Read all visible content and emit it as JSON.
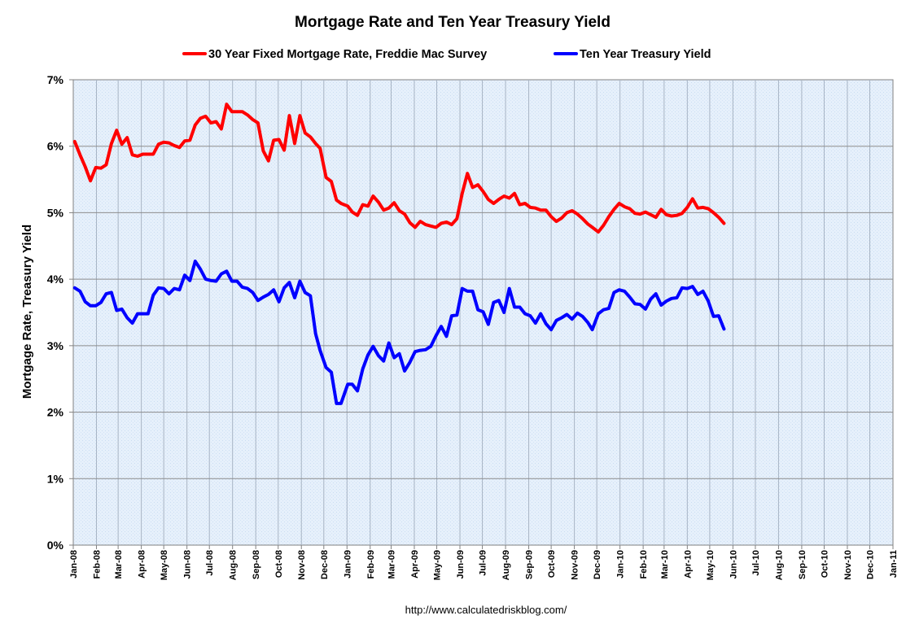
{
  "chart_data": {
    "type": "line",
    "title": "Mortgage Rate and Ten Year Treasury Yield",
    "ylabel": "Mortgage Rate, Treasury Yield",
    "xlabel": "",
    "source": "http://www.calculatedriskblog.com/",
    "ylim": [
      0,
      7
    ],
    "xlim": [
      "2008-01-01",
      "2011-01-01"
    ],
    "y_ticks": [
      "0%",
      "1%",
      "2%",
      "3%",
      "4%",
      "5%",
      "6%",
      "7%"
    ],
    "x_ticks": [
      "Jan-08",
      "Feb-08",
      "Mar-08",
      "Apr-08",
      "May-08",
      "Jun-08",
      "Jul-08",
      "Aug-08",
      "Sep-08",
      "Oct-08",
      "Nov-08",
      "Dec-08",
      "Jan-09",
      "Feb-09",
      "Mar-09",
      "Apr-09",
      "May-09",
      "Jun-09",
      "Jul-09",
      "Aug-09",
      "Sep-09",
      "Oct-09",
      "Nov-09",
      "Dec-09",
      "Jan-10",
      "Feb-10",
      "Mar-10",
      "Apr-10",
      "May-10",
      "Jun-10",
      "Jul-10",
      "Aug-10",
      "Sep-10",
      "Oct-10",
      "Nov-10",
      "Dec-10",
      "Jan-11"
    ],
    "grid": true,
    "legend_position": "top",
    "colors": {
      "mortgage": "#ff0000",
      "treasury": "#0000ff",
      "plot_bg": "#e6f0fb",
      "grid": "#999999"
    },
    "series": [
      {
        "name": "30 Year Fixed Mortgage Rate, Freddie Mac Survey",
        "color": "#ff0000",
        "x": [
          "2008-01-03",
          "2008-01-10",
          "2008-01-17",
          "2008-01-24",
          "2008-01-31",
          "2008-02-07",
          "2008-02-14",
          "2008-02-21",
          "2008-02-28",
          "2008-03-06",
          "2008-03-13",
          "2008-03-20",
          "2008-03-27",
          "2008-04-03",
          "2008-04-10",
          "2008-04-17",
          "2008-04-24",
          "2008-05-01",
          "2008-05-08",
          "2008-05-15",
          "2008-05-22",
          "2008-05-29",
          "2008-06-05",
          "2008-06-12",
          "2008-06-19",
          "2008-06-26",
          "2008-07-03",
          "2008-07-10",
          "2008-07-17",
          "2008-07-24",
          "2008-07-31",
          "2008-08-07",
          "2008-08-14",
          "2008-08-21",
          "2008-08-28",
          "2008-09-04",
          "2008-09-11",
          "2008-09-18",
          "2008-09-25",
          "2008-10-02",
          "2008-10-09",
          "2008-10-16",
          "2008-10-23",
          "2008-10-30",
          "2008-11-06",
          "2008-11-13",
          "2008-11-20",
          "2008-11-26",
          "2008-12-04",
          "2008-12-11",
          "2008-12-18",
          "2008-12-24",
          "2009-01-02",
          "2009-01-08",
          "2009-01-15",
          "2009-01-22",
          "2009-01-29",
          "2009-02-05",
          "2009-02-12",
          "2009-02-19",
          "2009-02-26",
          "2009-03-05",
          "2009-03-12",
          "2009-03-19",
          "2009-03-26",
          "2009-04-02",
          "2009-04-09",
          "2009-04-16",
          "2009-04-23",
          "2009-04-30",
          "2009-05-07",
          "2009-05-14",
          "2009-05-21",
          "2009-05-28",
          "2009-06-04",
          "2009-06-11",
          "2009-06-18",
          "2009-06-25",
          "2009-07-02",
          "2009-07-09",
          "2009-07-16",
          "2009-07-23",
          "2009-07-30",
          "2009-08-06",
          "2009-08-13",
          "2009-08-20",
          "2009-08-27",
          "2009-09-03",
          "2009-09-10",
          "2009-09-17",
          "2009-09-24",
          "2009-10-01",
          "2009-10-08",
          "2009-10-15",
          "2009-10-22",
          "2009-10-29",
          "2009-11-05",
          "2009-11-12",
          "2009-11-19",
          "2009-11-25",
          "2009-12-03",
          "2009-12-10",
          "2009-12-17",
          "2009-12-24",
          "2009-12-31",
          "2010-01-07",
          "2010-01-14",
          "2010-01-21",
          "2010-01-28",
          "2010-02-04",
          "2010-02-11",
          "2010-02-18",
          "2010-02-25",
          "2010-03-04",
          "2010-03-11",
          "2010-03-18",
          "2010-03-25",
          "2010-04-01",
          "2010-04-08",
          "2010-04-15",
          "2010-04-22",
          "2010-04-29",
          "2010-05-06",
          "2010-05-13",
          "2010-05-20"
        ],
        "values": [
          6.07,
          5.87,
          5.69,
          5.48,
          5.68,
          5.67,
          5.72,
          6.04,
          6.24,
          6.03,
          6.13,
          5.87,
          5.85,
          5.88,
          5.88,
          5.88,
          6.03,
          6.06,
          6.05,
          6.01,
          5.98,
          6.08,
          6.09,
          6.32,
          6.42,
          6.45,
          6.35,
          6.37,
          6.26,
          6.63,
          6.52,
          6.52,
          6.52,
          6.47,
          6.4,
          6.35,
          5.93,
          5.78,
          6.09,
          6.1,
          5.94,
          6.46,
          6.04,
          6.46,
          6.2,
          6.14,
          6.04,
          5.97,
          5.53,
          5.47,
          5.19,
          5.14,
          5.1,
          5.01,
          4.96,
          5.12,
          5.1,
          5.25,
          5.16,
          5.04,
          5.07,
          5.15,
          5.03,
          4.98,
          4.85,
          4.78,
          4.87,
          4.82,
          4.8,
          4.78,
          4.84,
          4.86,
          4.82,
          4.91,
          5.29,
          5.59,
          5.38,
          5.42,
          5.32,
          5.2,
          5.14,
          5.2,
          5.25,
          5.22,
          5.29,
          5.12,
          5.14,
          5.08,
          5.07,
          5.04,
          5.04,
          4.94,
          4.87,
          4.92,
          5.0,
          5.03,
          4.98,
          4.91,
          4.83,
          4.78,
          4.71,
          4.81,
          4.94,
          5.05,
          5.14,
          5.09,
          5.06,
          4.99,
          4.98,
          5.01,
          4.97,
          4.93,
          5.05,
          4.97,
          4.95,
          4.96,
          4.99,
          5.08,
          5.21,
          5.07,
          5.08,
          5.06,
          5.0,
          4.93,
          4.84
        ]
      },
      {
        "name": "Ten Year Treasury Yield",
        "color": "#0000ff",
        "x": [
          "2008-01-03",
          "2008-01-10",
          "2008-01-17",
          "2008-01-24",
          "2008-01-31",
          "2008-02-07",
          "2008-02-14",
          "2008-02-21",
          "2008-02-28",
          "2008-03-06",
          "2008-03-13",
          "2008-03-20",
          "2008-03-27",
          "2008-04-03",
          "2008-04-10",
          "2008-04-17",
          "2008-04-24",
          "2008-05-01",
          "2008-05-08",
          "2008-05-15",
          "2008-05-22",
          "2008-05-29",
          "2008-06-05",
          "2008-06-12",
          "2008-06-19",
          "2008-06-26",
          "2008-07-03",
          "2008-07-10",
          "2008-07-17",
          "2008-07-24",
          "2008-07-31",
          "2008-08-07",
          "2008-08-14",
          "2008-08-21",
          "2008-08-28",
          "2008-09-04",
          "2008-09-11",
          "2008-09-18",
          "2008-09-25",
          "2008-10-02",
          "2008-10-09",
          "2008-10-16",
          "2008-10-23",
          "2008-10-30",
          "2008-11-06",
          "2008-11-13",
          "2008-11-20",
          "2008-11-26",
          "2008-12-04",
          "2008-12-11",
          "2008-12-18",
          "2008-12-24",
          "2009-01-02",
          "2009-01-08",
          "2009-01-15",
          "2009-01-22",
          "2009-01-29",
          "2009-02-05",
          "2009-02-12",
          "2009-02-19",
          "2009-02-26",
          "2009-03-05",
          "2009-03-12",
          "2009-03-19",
          "2009-03-26",
          "2009-04-02",
          "2009-04-09",
          "2009-04-16",
          "2009-04-23",
          "2009-04-30",
          "2009-05-07",
          "2009-05-14",
          "2009-05-21",
          "2009-05-28",
          "2009-06-04",
          "2009-06-11",
          "2009-06-18",
          "2009-06-25",
          "2009-07-02",
          "2009-07-09",
          "2009-07-16",
          "2009-07-23",
          "2009-07-30",
          "2009-08-06",
          "2009-08-13",
          "2009-08-20",
          "2009-08-27",
          "2009-09-03",
          "2009-09-10",
          "2009-09-17",
          "2009-09-24",
          "2009-10-01",
          "2009-10-08",
          "2009-10-15",
          "2009-10-22",
          "2009-10-29",
          "2009-11-05",
          "2009-11-12",
          "2009-11-19",
          "2009-11-25",
          "2009-12-03",
          "2009-12-10",
          "2009-12-17",
          "2009-12-24",
          "2009-12-31",
          "2010-01-07",
          "2010-01-14",
          "2010-01-21",
          "2010-01-28",
          "2010-02-04",
          "2010-02-11",
          "2010-02-18",
          "2010-02-25",
          "2010-03-04",
          "2010-03-11",
          "2010-03-18",
          "2010-03-25",
          "2010-04-01",
          "2010-04-08",
          "2010-04-15",
          "2010-04-22",
          "2010-04-29",
          "2010-05-06",
          "2010-05-13",
          "2010-05-20"
        ],
        "values": [
          3.87,
          3.82,
          3.66,
          3.6,
          3.6,
          3.65,
          3.78,
          3.8,
          3.53,
          3.55,
          3.42,
          3.34,
          3.48,
          3.48,
          3.48,
          3.76,
          3.87,
          3.86,
          3.78,
          3.86,
          3.84,
          4.06,
          3.98,
          4.27,
          4.15,
          4.0,
          3.98,
          3.97,
          4.08,
          4.12,
          3.97,
          3.97,
          3.88,
          3.86,
          3.8,
          3.68,
          3.73,
          3.77,
          3.84,
          3.66,
          3.87,
          3.95,
          3.72,
          3.97,
          3.8,
          3.75,
          3.18,
          2.93,
          2.67,
          2.6,
          2.13,
          2.13,
          2.42,
          2.42,
          2.32,
          2.65,
          2.86,
          2.99,
          2.85,
          2.77,
          3.04,
          2.82,
          2.88,
          2.62,
          2.75,
          2.91,
          2.93,
          2.94,
          2.99,
          3.15,
          3.29,
          3.14,
          3.45,
          3.46,
          3.86,
          3.82,
          3.82,
          3.54,
          3.51,
          3.32,
          3.65,
          3.68,
          3.5,
          3.86,
          3.58,
          3.58,
          3.48,
          3.45,
          3.34,
          3.48,
          3.33,
          3.24,
          3.38,
          3.42,
          3.47,
          3.4,
          3.49,
          3.44,
          3.35,
          3.24,
          3.48,
          3.54,
          3.56,
          3.8,
          3.84,
          3.82,
          3.73,
          3.63,
          3.62,
          3.55,
          3.7,
          3.78,
          3.61,
          3.67,
          3.71,
          3.72,
          3.87,
          3.86,
          3.89,
          3.77,
          3.82,
          3.67,
          3.44,
          3.45,
          3.25
        ]
      }
    ]
  }
}
